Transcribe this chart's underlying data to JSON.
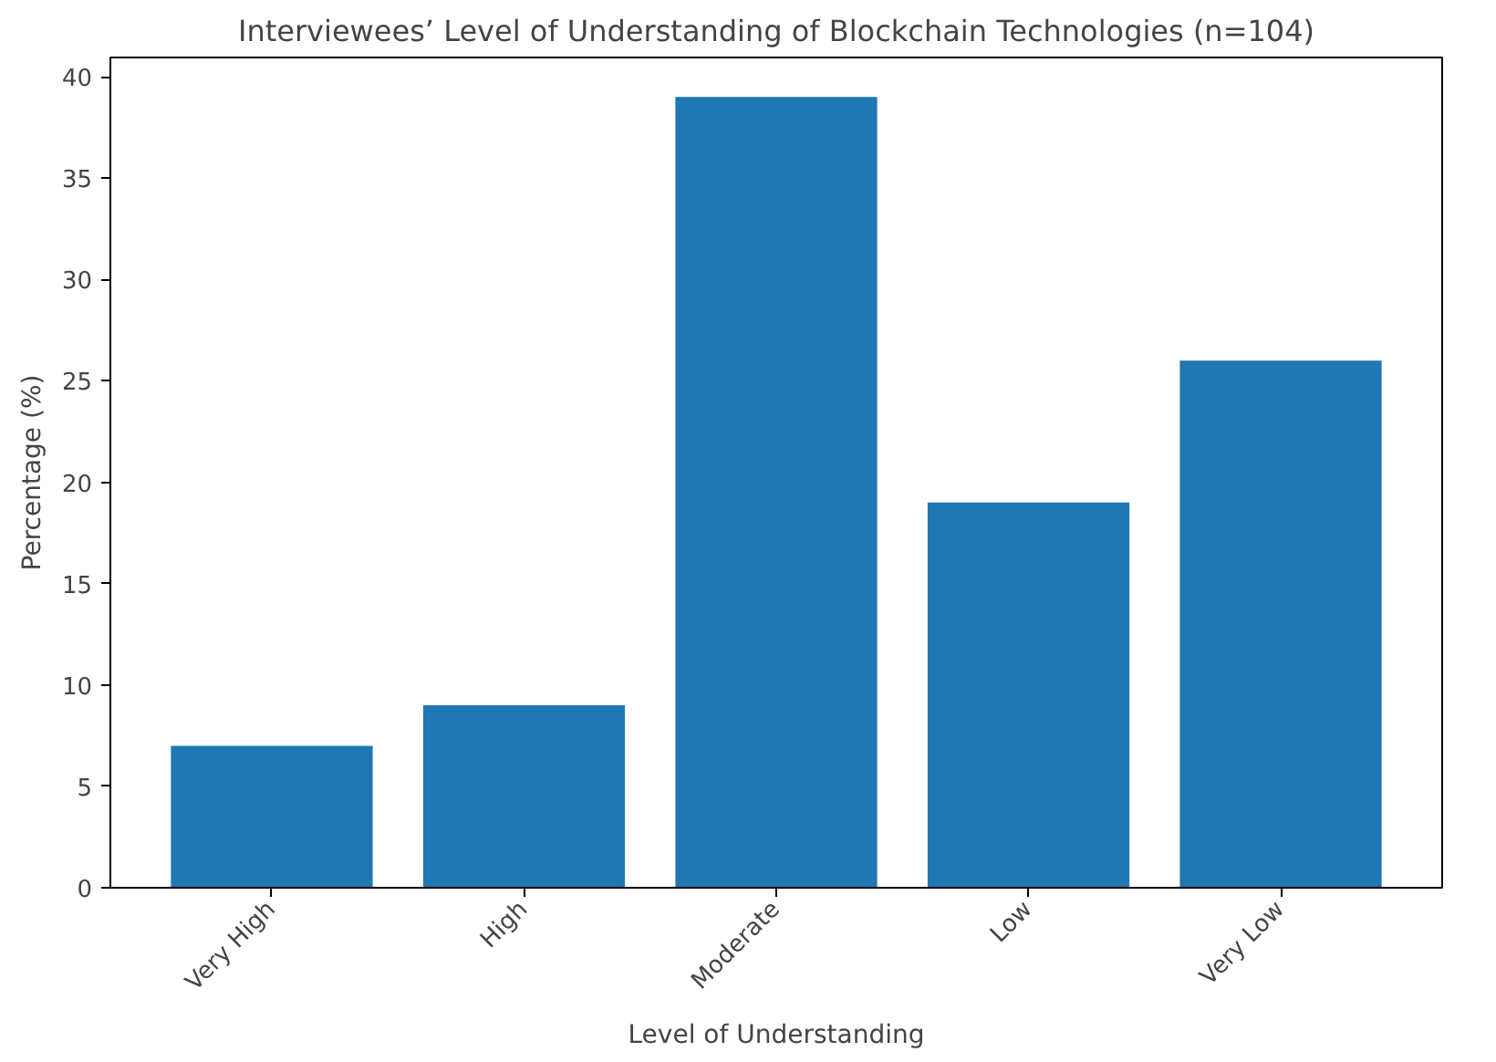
{
  "chart_data": {
    "type": "bar",
    "title": "Interviewees’ Level of Understanding of Blockchain Technologies (n=104)",
    "xlabel": "Level of Understanding",
    "ylabel": "Percentage (%)",
    "categories": [
      "Very High",
      "High",
      "Moderate",
      "Low",
      "Very Low"
    ],
    "values": [
      7,
      9,
      39,
      19,
      26
    ],
    "color": "#1f77b4",
    "ylim": [
      0,
      40.95
    ],
    "yticks": [
      0,
      5,
      10,
      15,
      20,
      25,
      30,
      35,
      40
    ],
    "grid": false
  }
}
